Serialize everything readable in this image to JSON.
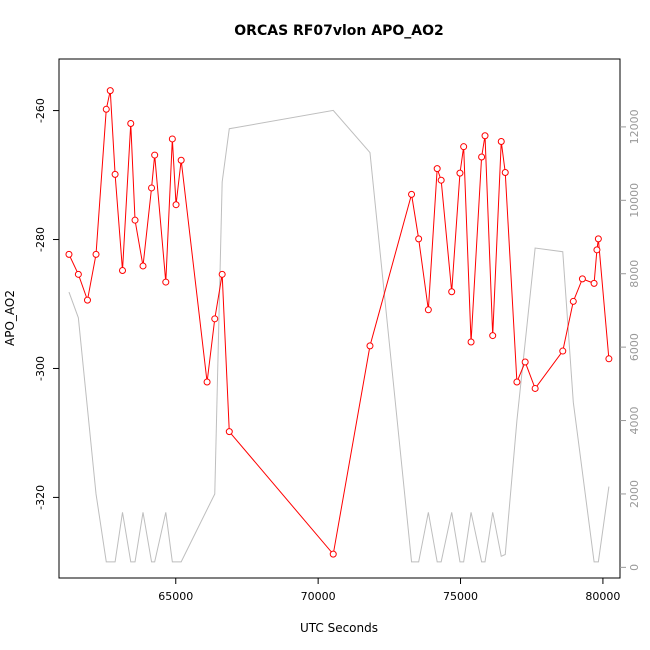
{
  "chart_data": {
    "type": "line",
    "title": "ORCAS RF07vlon APO_AO2",
    "xlabel": "UTC Seconds",
    "ylabel": "APO_AO2",
    "xlim": [
      60900,
      80600
    ],
    "ylim": [
      -332.5,
      -252
    ],
    "y2lim": [
      -290,
      13850
    ],
    "x_ticks": [
      65000,
      70000,
      75000,
      80000
    ],
    "y_ticks": [
      -260,
      -280,
      -300,
      -320
    ],
    "y2_ticks": [
      0,
      2000,
      4000,
      6000,
      8000,
      10000,
      12000
    ],
    "x_tick_labels": [
      "65000",
      "70000",
      "75000",
      "80000"
    ],
    "y_tick_labels": [
      "-260",
      "-280",
      "-300",
      "-320"
    ],
    "y2_tick_labels": [
      "0",
      "2000",
      "4000",
      "6000",
      "8000",
      "10000",
      "12000"
    ],
    "series": [
      {
        "style": "line+points",
        "color": "#ff0000",
        "axis": "left",
        "x": [
          61250,
          61580,
          61900,
          62200,
          62560,
          62700,
          62870,
          63130,
          63420,
          63570,
          63850,
          64150,
          64260,
          64650,
          64880,
          65010,
          65190,
          66100,
          66370,
          66630,
          66880,
          70530,
          71820,
          73280,
          73530,
          73870,
          74180,
          74320,
          74690,
          74980,
          75110,
          75370,
          75740,
          75860,
          76130,
          76430,
          76570,
          76980,
          77270,
          77620,
          78590,
          78960,
          79280,
          79690,
          79790,
          79840,
          80210
        ],
        "y": [
          -282.3,
          -285.4,
          -289.4,
          -282.3,
          -259.8,
          -256.9,
          -269.9,
          -284.8,
          -262.0,
          -277.0,
          -284.1,
          -272.0,
          -266.9,
          -286.6,
          -264.4,
          -274.6,
          -267.7,
          -302.1,
          -292.3,
          -285.4,
          -309.8,
          -328.8,
          -296.5,
          -273.0,
          -279.9,
          -290.9,
          -269.0,
          -270.8,
          -288.1,
          -269.7,
          -265.6,
          -295.9,
          -267.2,
          -263.9,
          -294.9,
          -264.8,
          -269.6,
          -302.1,
          -299.0,
          -303.1,
          -297.3,
          -289.6,
          -286.1,
          -286.8,
          -281.6,
          -279.9,
          -298.5
        ]
      },
      {
        "style": "line",
        "color": "#bebebe",
        "axis": "right",
        "x": [
          61250,
          61580,
          62200,
          62560,
          62870,
          63130,
          63420,
          63570,
          63850,
          64150,
          64260,
          64650,
          64880,
          65190,
          66370,
          66630,
          66880,
          70530,
          71820,
          73280,
          73530,
          73870,
          74180,
          74320,
          74690,
          74980,
          75110,
          75370,
          75740,
          75860,
          76130,
          76430,
          76570,
          76980,
          77620,
          78590,
          78960,
          79690,
          79840,
          80210
        ],
        "y": [
          7500,
          6800,
          2000,
          150,
          150,
          1500,
          150,
          150,
          1500,
          150,
          150,
          1500,
          150,
          150,
          2000,
          10500,
          11950,
          12450,
          11300,
          150,
          150,
          1500,
          150,
          150,
          1500,
          150,
          150,
          1500,
          150,
          150,
          1500,
          300,
          350,
          4000,
          8700,
          8600,
          4500,
          150,
          150,
          2200
        ]
      }
    ]
  }
}
